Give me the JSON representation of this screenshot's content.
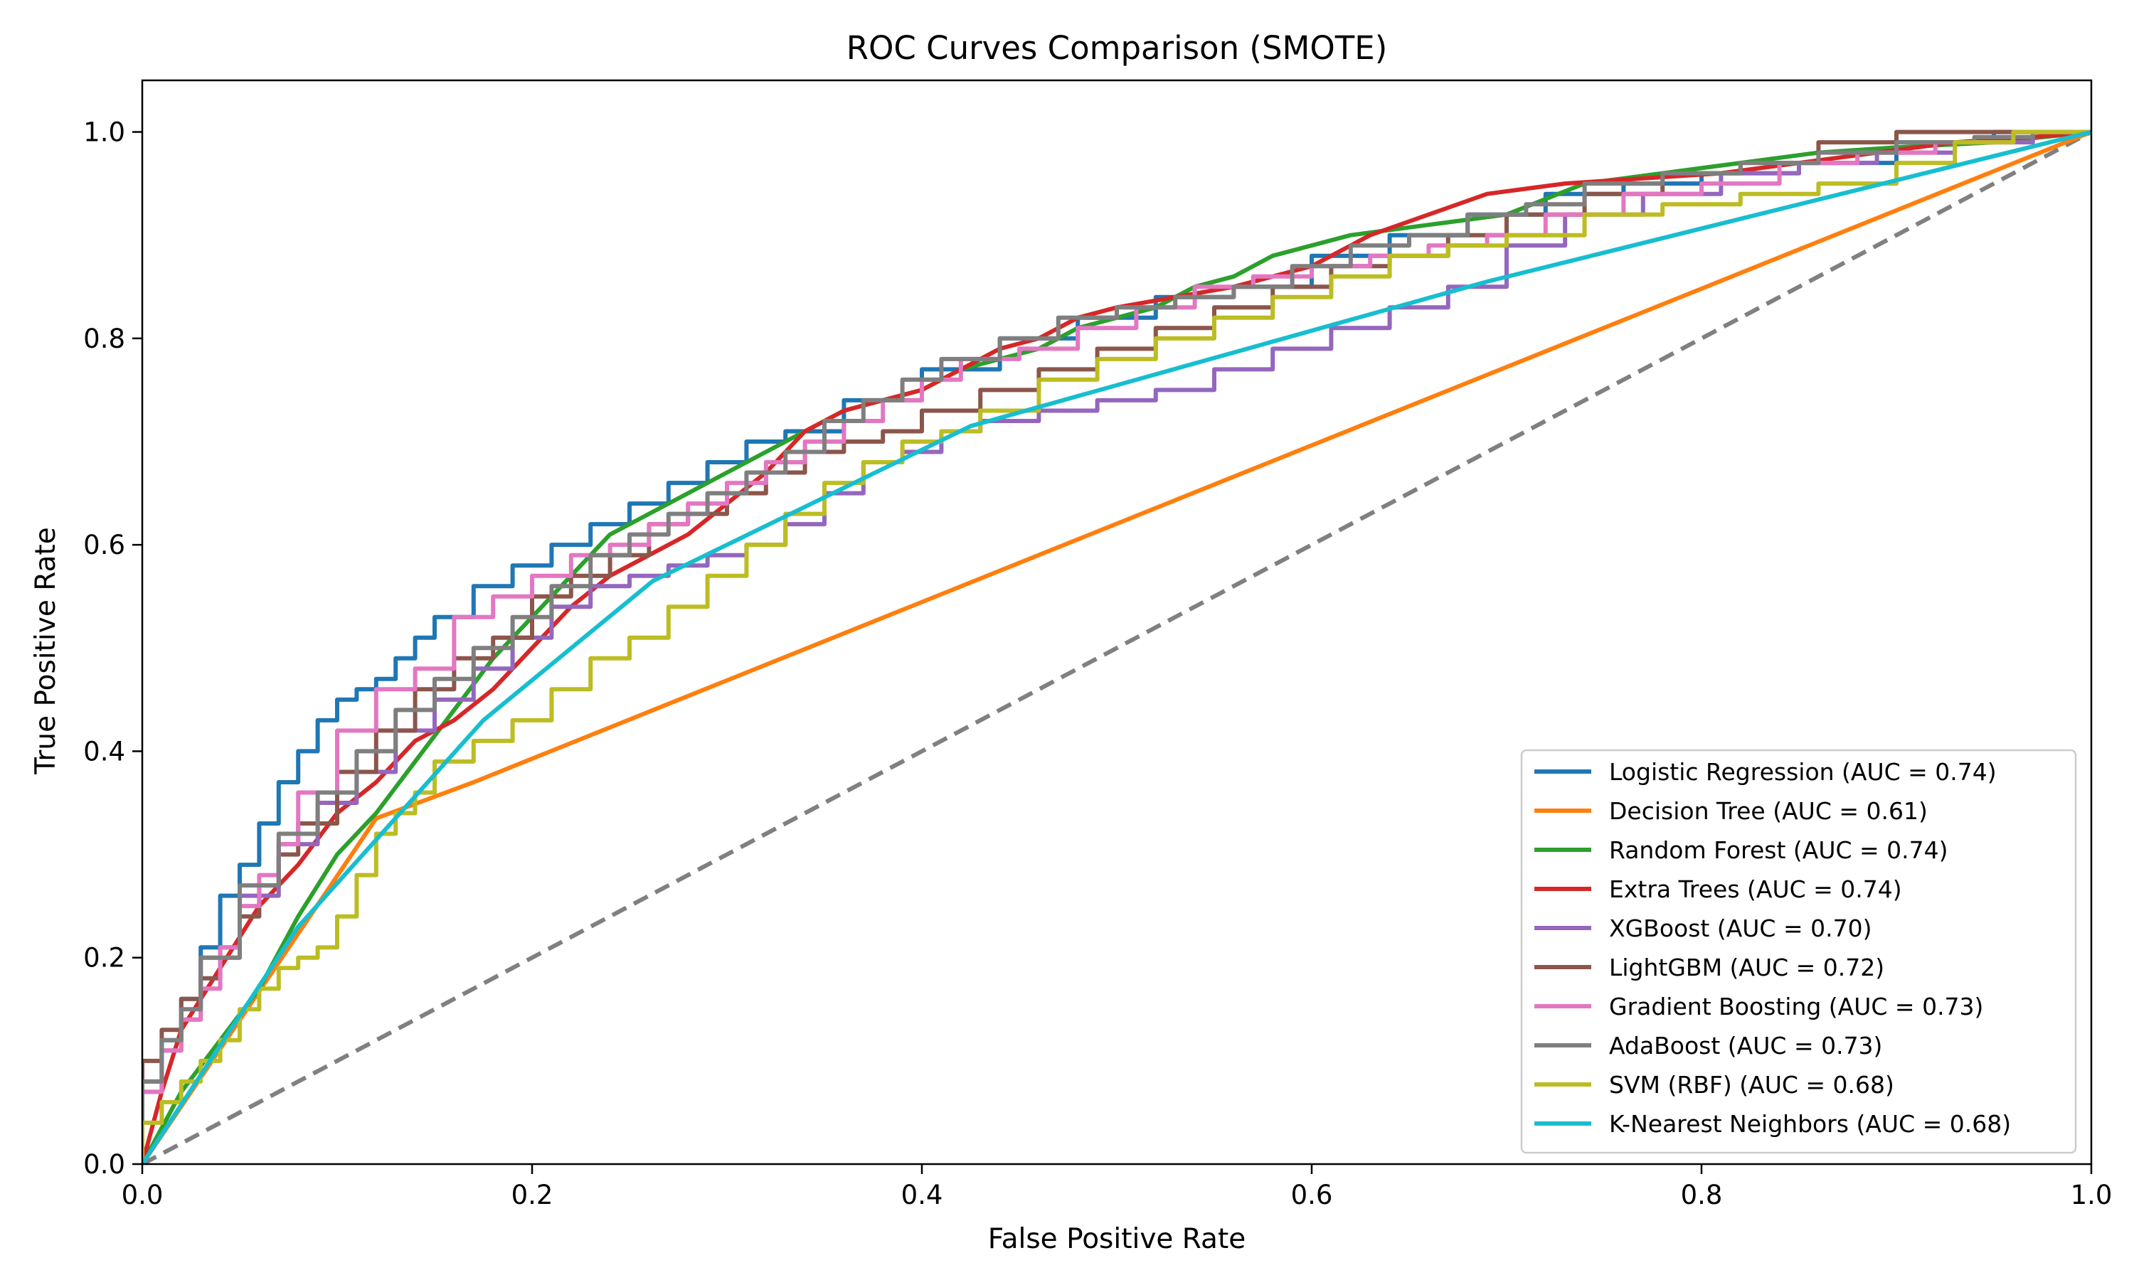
{
  "chart_data": {
    "type": "line",
    "title": "ROC Curves Comparison (SMOTE)",
    "xlabel": "False Positive Rate",
    "ylabel": "True Positive Rate",
    "xlim": [
      0.0,
      1.0
    ],
    "ylim": [
      0.0,
      1.05
    ],
    "xticks": [
      "0.0",
      "0.2",
      "0.4",
      "0.6",
      "0.8",
      "1.0"
    ],
    "yticks": [
      "0.0",
      "0.2",
      "0.4",
      "0.6",
      "0.8",
      "1.0"
    ],
    "grid": false,
    "legend_position": "lower-right",
    "baseline": {
      "style": "dashed",
      "color": "#808080",
      "x": [
        0.0,
        1.0
      ],
      "y": [
        0.0,
        1.0
      ]
    },
    "series": [
      {
        "name": "Logistic Regression (AUC = 0.74)",
        "color": "#1f77b4",
        "step": true,
        "x": [
          0.0,
          0.01,
          0.02,
          0.03,
          0.04,
          0.05,
          0.06,
          0.07,
          0.08,
          0.09,
          0.1,
          0.11,
          0.12,
          0.13,
          0.14,
          0.15,
          0.17,
          0.19,
          0.21,
          0.23,
          0.25,
          0.27,
          0.29,
          0.31,
          0.33,
          0.36,
          0.4,
          0.44,
          0.48,
          0.52,
          0.56,
          0.6,
          0.64,
          0.68,
          0.72,
          0.76,
          0.8,
          0.85,
          0.9,
          0.95,
          1.0
        ],
        "y": [
          0.0,
          0.08,
          0.12,
          0.16,
          0.21,
          0.26,
          0.29,
          0.33,
          0.37,
          0.4,
          0.43,
          0.45,
          0.46,
          0.47,
          0.49,
          0.51,
          0.53,
          0.56,
          0.58,
          0.6,
          0.62,
          0.64,
          0.66,
          0.68,
          0.7,
          0.71,
          0.74,
          0.77,
          0.8,
          0.82,
          0.84,
          0.85,
          0.88,
          0.9,
          0.92,
          0.94,
          0.95,
          0.96,
          0.97,
          0.99,
          1.0
        ]
      },
      {
        "name": "Decision Tree (AUC = 0.61)",
        "color": "#ff7f0e",
        "step": false,
        "x": [
          0.0,
          0.12,
          0.17,
          1.0
        ],
        "y": [
          0.0,
          0.335,
          0.37,
          1.0
        ]
      },
      {
        "name": "Random Forest (AUC = 0.74)",
        "color": "#2ca02c",
        "step": false,
        "x": [
          0.0,
          0.02,
          0.04,
          0.06,
          0.08,
          0.1,
          0.12,
          0.14,
          0.16,
          0.18,
          0.2,
          0.22,
          0.24,
          0.26,
          0.28,
          0.3,
          0.32,
          0.34,
          0.36,
          0.38,
          0.4,
          0.42,
          0.44,
          0.46,
          0.48,
          0.5,
          0.52,
          0.54,
          0.56,
          0.58,
          0.62,
          0.66,
          0.7,
          0.74,
          0.78,
          0.82,
          0.86,
          0.9,
          0.95,
          1.0
        ],
        "y": [
          0.0,
          0.07,
          0.12,
          0.17,
          0.24,
          0.3,
          0.34,
          0.39,
          0.44,
          0.49,
          0.53,
          0.57,
          0.61,
          0.63,
          0.65,
          0.67,
          0.69,
          0.71,
          0.73,
          0.74,
          0.75,
          0.77,
          0.78,
          0.79,
          0.81,
          0.82,
          0.83,
          0.85,
          0.86,
          0.88,
          0.9,
          0.91,
          0.92,
          0.95,
          0.96,
          0.97,
          0.98,
          0.985,
          0.99,
          1.0
        ]
      },
      {
        "name": "Extra Trees (AUC = 0.74)",
        "color": "#d62728",
        "step": false,
        "x": [
          0.0,
          0.01,
          0.02,
          0.03,
          0.04,
          0.05,
          0.06,
          0.08,
          0.1,
          0.12,
          0.14,
          0.16,
          0.18,
          0.2,
          0.22,
          0.24,
          0.26,
          0.28,
          0.3,
          0.32,
          0.34,
          0.36,
          0.38,
          0.4,
          0.42,
          0.44,
          0.46,
          0.48,
          0.5,
          0.53,
          0.56,
          0.6,
          0.63,
          0.66,
          0.69,
          0.73,
          0.77,
          0.81,
          0.85,
          0.89,
          0.93,
          0.97,
          1.0
        ],
        "y": [
          0.0,
          0.07,
          0.13,
          0.16,
          0.19,
          0.22,
          0.25,
          0.29,
          0.34,
          0.37,
          0.41,
          0.43,
          0.46,
          0.5,
          0.54,
          0.57,
          0.59,
          0.61,
          0.64,
          0.67,
          0.71,
          0.73,
          0.74,
          0.75,
          0.77,
          0.79,
          0.8,
          0.82,
          0.83,
          0.84,
          0.85,
          0.87,
          0.9,
          0.92,
          0.94,
          0.95,
          0.955,
          0.96,
          0.97,
          0.98,
          0.99,
          0.995,
          1.0
        ]
      },
      {
        "name": "XGBoost (AUC = 0.70)",
        "color": "#9467bd",
        "step": true,
        "x": [
          0.0,
          0.01,
          0.02,
          0.03,
          0.05,
          0.07,
          0.09,
          0.11,
          0.13,
          0.15,
          0.17,
          0.19,
          0.21,
          0.23,
          0.25,
          0.27,
          0.29,
          0.31,
          0.33,
          0.35,
          0.37,
          0.39,
          0.41,
          0.43,
          0.46,
          0.49,
          0.52,
          0.55,
          0.58,
          0.61,
          0.64,
          0.67,
          0.7,
          0.73,
          0.77,
          0.81,
          0.85,
          0.89,
          0.93,
          0.97,
          1.0
        ],
        "y": [
          0.0,
          0.07,
          0.11,
          0.14,
          0.2,
          0.26,
          0.31,
          0.35,
          0.38,
          0.42,
          0.45,
          0.48,
          0.51,
          0.54,
          0.56,
          0.57,
          0.58,
          0.59,
          0.6,
          0.62,
          0.65,
          0.68,
          0.69,
          0.71,
          0.72,
          0.73,
          0.74,
          0.75,
          0.77,
          0.79,
          0.81,
          0.83,
          0.85,
          0.89,
          0.92,
          0.94,
          0.96,
          0.97,
          0.98,
          0.99,
          1.0
        ]
      },
      {
        "name": "LightGBM (AUC = 0.72)",
        "color": "#8c564b",
        "step": true,
        "x": [
          0.0,
          0.01,
          0.02,
          0.03,
          0.04,
          0.05,
          0.06,
          0.07,
          0.08,
          0.1,
          0.12,
          0.14,
          0.16,
          0.18,
          0.2,
          0.22,
          0.24,
          0.26,
          0.28,
          0.3,
          0.32,
          0.34,
          0.36,
          0.38,
          0.4,
          0.43,
          0.46,
          0.49,
          0.52,
          0.55,
          0.58,
          0.61,
          0.64,
          0.67,
          0.7,
          0.74,
          0.78,
          0.82,
          0.86,
          0.9,
          0.95,
          1.0
        ],
        "y": [
          0.0,
          0.1,
          0.13,
          0.16,
          0.18,
          0.21,
          0.24,
          0.27,
          0.3,
          0.33,
          0.38,
          0.42,
          0.46,
          0.49,
          0.51,
          0.55,
          0.57,
          0.59,
          0.62,
          0.63,
          0.65,
          0.67,
          0.69,
          0.7,
          0.71,
          0.73,
          0.75,
          0.77,
          0.79,
          0.81,
          0.83,
          0.85,
          0.87,
          0.88,
          0.9,
          0.92,
          0.94,
          0.96,
          0.97,
          0.99,
          1.0,
          1.0
        ]
      },
      {
        "name": "Gradient Boosting (AUC = 0.73)",
        "color": "#e377c2",
        "step": true,
        "x": [
          0.0,
          0.01,
          0.02,
          0.03,
          0.04,
          0.05,
          0.06,
          0.07,
          0.08,
          0.1,
          0.12,
          0.14,
          0.16,
          0.18,
          0.2,
          0.22,
          0.24,
          0.26,
          0.28,
          0.3,
          0.32,
          0.34,
          0.36,
          0.38,
          0.4,
          0.42,
          0.45,
          0.48,
          0.51,
          0.54,
          0.57,
          0.6,
          0.63,
          0.66,
          0.69,
          0.72,
          0.76,
          0.8,
          0.84,
          0.88,
          0.92,
          0.96,
          1.0
        ],
        "y": [
          0.0,
          0.07,
          0.11,
          0.14,
          0.17,
          0.21,
          0.25,
          0.28,
          0.31,
          0.36,
          0.42,
          0.46,
          0.48,
          0.53,
          0.55,
          0.57,
          0.59,
          0.6,
          0.62,
          0.64,
          0.66,
          0.68,
          0.7,
          0.72,
          0.74,
          0.76,
          0.78,
          0.79,
          0.81,
          0.83,
          0.85,
          0.86,
          0.87,
          0.88,
          0.89,
          0.9,
          0.92,
          0.94,
          0.95,
          0.97,
          0.98,
          0.99,
          1.0
        ]
      },
      {
        "name": "AdaBoost (AUC = 0.73)",
        "color": "#7f7f7f",
        "step": true,
        "x": [
          0.0,
          0.01,
          0.02,
          0.03,
          0.05,
          0.07,
          0.09,
          0.11,
          0.13,
          0.15,
          0.17,
          0.19,
          0.21,
          0.23,
          0.25,
          0.27,
          0.29,
          0.31,
          0.33,
          0.35,
          0.37,
          0.39,
          0.41,
          0.44,
          0.47,
          0.5,
          0.53,
          0.56,
          0.59,
          0.62,
          0.65,
          0.68,
          0.71,
          0.74,
          0.78,
          0.82,
          0.86,
          0.9,
          0.94,
          0.97,
          1.0
        ],
        "y": [
          0.0,
          0.08,
          0.12,
          0.15,
          0.2,
          0.27,
          0.32,
          0.36,
          0.4,
          0.44,
          0.47,
          0.5,
          0.53,
          0.56,
          0.59,
          0.61,
          0.63,
          0.65,
          0.67,
          0.69,
          0.72,
          0.74,
          0.76,
          0.78,
          0.8,
          0.82,
          0.83,
          0.84,
          0.85,
          0.87,
          0.89,
          0.9,
          0.92,
          0.93,
          0.95,
          0.96,
          0.97,
          0.98,
          0.99,
          0.995,
          1.0
        ]
      },
      {
        "name": "SVM (RBF) (AUC = 0.68)",
        "color": "#bcbd22",
        "step": true,
        "x": [
          0.0,
          0.01,
          0.02,
          0.03,
          0.04,
          0.05,
          0.06,
          0.07,
          0.08,
          0.09,
          0.1,
          0.11,
          0.12,
          0.13,
          0.14,
          0.15,
          0.17,
          0.19,
          0.21,
          0.23,
          0.25,
          0.27,
          0.29,
          0.31,
          0.33,
          0.35,
          0.37,
          0.39,
          0.41,
          0.43,
          0.46,
          0.49,
          0.52,
          0.55,
          0.58,
          0.61,
          0.64,
          0.67,
          0.7,
          0.74,
          0.78,
          0.82,
          0.86,
          0.9,
          0.93,
          0.96,
          1.0
        ],
        "y": [
          0.0,
          0.04,
          0.06,
          0.08,
          0.1,
          0.12,
          0.15,
          0.17,
          0.19,
          0.2,
          0.21,
          0.24,
          0.28,
          0.32,
          0.34,
          0.36,
          0.39,
          0.41,
          0.43,
          0.46,
          0.49,
          0.51,
          0.54,
          0.57,
          0.6,
          0.63,
          0.66,
          0.68,
          0.7,
          0.71,
          0.73,
          0.76,
          0.78,
          0.8,
          0.82,
          0.84,
          0.86,
          0.88,
          0.89,
          0.9,
          0.92,
          0.93,
          0.94,
          0.95,
          0.97,
          0.99,
          1.0
        ]
      },
      {
        "name": "K-Nearest Neighbors (AUC = 0.68)",
        "color": "#17becf",
        "step": false,
        "x": [
          0.0,
          0.08,
          0.175,
          0.262,
          0.425,
          0.69,
          1.0
        ],
        "y": [
          0.0,
          0.23,
          0.43,
          0.565,
          0.715,
          0.855,
          1.0
        ]
      }
    ]
  }
}
